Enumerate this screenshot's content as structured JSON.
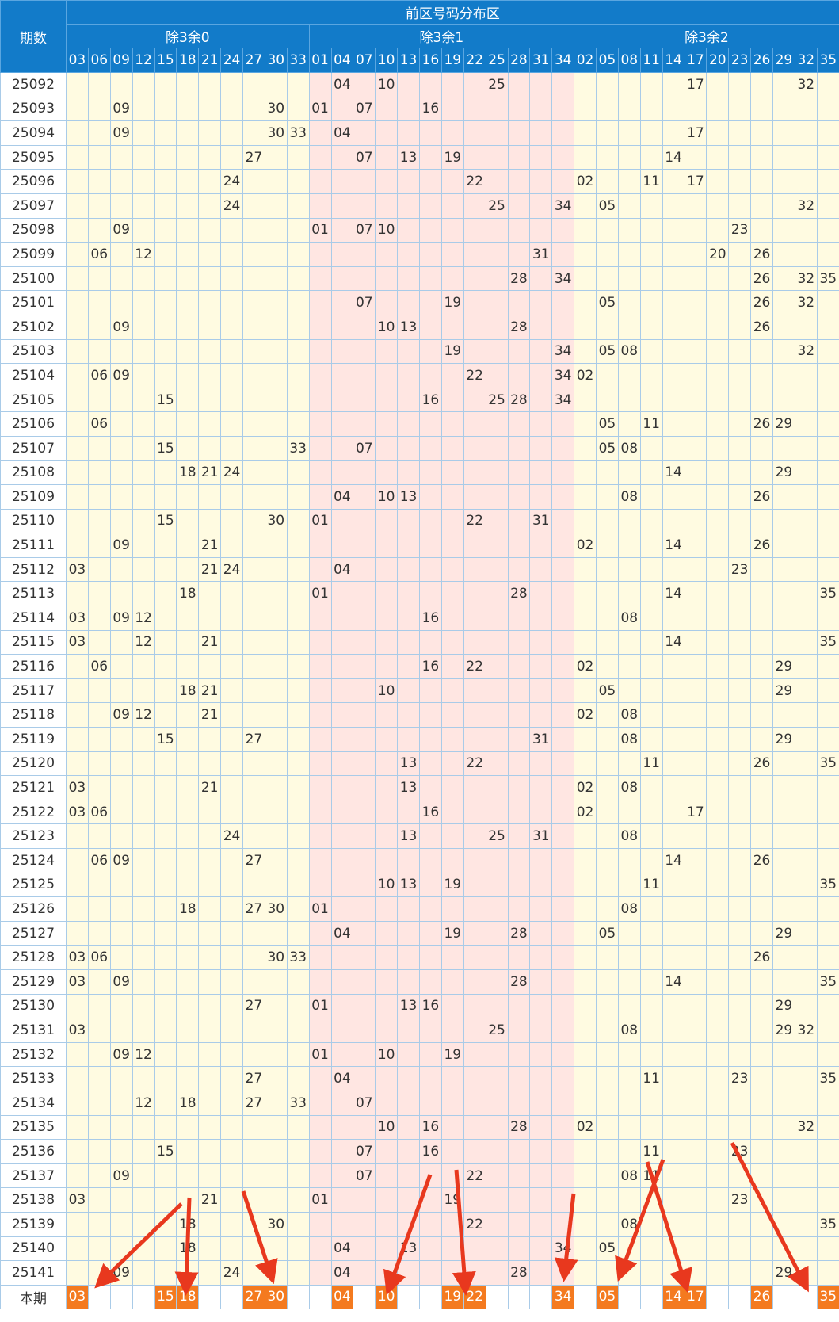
{
  "header": {
    "title": "前区号码分布区",
    "period_label": "期数",
    "groups": [
      {
        "label": "除3余0",
        "columns": [
          "03",
          "06",
          "09",
          "12",
          "15",
          "18",
          "21",
          "24",
          "27",
          "30",
          "33"
        ]
      },
      {
        "label": "除3余1",
        "columns": [
          "01",
          "04",
          "07",
          "10",
          "13",
          "16",
          "19",
          "22",
          "25",
          "28",
          "31",
          "34"
        ]
      },
      {
        "label": "除3余2",
        "columns": [
          "02",
          "05",
          "08",
          "11",
          "14",
          "17",
          "20",
          "23",
          "26",
          "29",
          "32",
          "35"
        ]
      }
    ]
  },
  "rows": [
    {
      "period": "25092",
      "numbers": [
        "04",
        "10",
        "25",
        "17",
        "32"
      ]
    },
    {
      "period": "25093",
      "numbers": [
        "09",
        "30",
        "01",
        "07",
        "16"
      ]
    },
    {
      "period": "25094",
      "numbers": [
        "09",
        "30",
        "33",
        "04",
        "17"
      ]
    },
    {
      "period": "25095",
      "numbers": [
        "27",
        "07",
        "13",
        "19",
        "14"
      ]
    },
    {
      "period": "25096",
      "numbers": [
        "24",
        "22",
        "02",
        "11",
        "17"
      ]
    },
    {
      "period": "25097",
      "numbers": [
        "24",
        "25",
        "34",
        "05",
        "32"
      ]
    },
    {
      "period": "25098",
      "numbers": [
        "09",
        "01",
        "07",
        "10",
        "23"
      ]
    },
    {
      "period": "25099",
      "numbers": [
        "06",
        "12",
        "31",
        "20",
        "26"
      ]
    },
    {
      "period": "25100",
      "numbers": [
        "28",
        "34",
        "26",
        "32",
        "35"
      ]
    },
    {
      "period": "25101",
      "numbers": [
        "07",
        "19",
        "05",
        "26",
        "32"
      ]
    },
    {
      "period": "25102",
      "numbers": [
        "09",
        "10",
        "13",
        "28",
        "26"
      ]
    },
    {
      "period": "25103",
      "numbers": [
        "19",
        "34",
        "05",
        "08",
        "32"
      ]
    },
    {
      "period": "25104",
      "numbers": [
        "06",
        "09",
        "22",
        "34",
        "02"
      ]
    },
    {
      "period": "25105",
      "numbers": [
        "15",
        "16",
        "25",
        "28",
        "34"
      ]
    },
    {
      "period": "25106",
      "numbers": [
        "06",
        "05",
        "11",
        "26",
        "29"
      ]
    },
    {
      "period": "25107",
      "numbers": [
        "15",
        "33",
        "07",
        "05",
        "08"
      ]
    },
    {
      "period": "25108",
      "numbers": [
        "18",
        "21",
        "24",
        "14",
        "29"
      ]
    },
    {
      "period": "25109",
      "numbers": [
        "04",
        "10",
        "13",
        "08",
        "26"
      ]
    },
    {
      "period": "25110",
      "numbers": [
        "15",
        "30",
        "01",
        "22",
        "31"
      ]
    },
    {
      "period": "25111",
      "numbers": [
        "09",
        "21",
        "02",
        "14",
        "26"
      ]
    },
    {
      "period": "25112",
      "numbers": [
        "03",
        "21",
        "24",
        "04",
        "23"
      ]
    },
    {
      "period": "25113",
      "numbers": [
        "18",
        "01",
        "28",
        "14",
        "35"
      ]
    },
    {
      "period": "25114",
      "numbers": [
        "03",
        "09",
        "12",
        "16",
        "08"
      ]
    },
    {
      "period": "25115",
      "numbers": [
        "03",
        "12",
        "21",
        "14",
        "35"
      ]
    },
    {
      "period": "25116",
      "numbers": [
        "06",
        "16",
        "22",
        "02",
        "29"
      ]
    },
    {
      "period": "25117",
      "numbers": [
        "18",
        "21",
        "10",
        "05",
        "29"
      ]
    },
    {
      "period": "25118",
      "numbers": [
        "09",
        "12",
        "21",
        "02",
        "08"
      ]
    },
    {
      "period": "25119",
      "numbers": [
        "15",
        "27",
        "31",
        "08",
        "29"
      ]
    },
    {
      "period": "25120",
      "numbers": [
        "13",
        "22",
        "11",
        "26",
        "35"
      ]
    },
    {
      "period": "25121",
      "numbers": [
        "03",
        "21",
        "13",
        "02",
        "08"
      ]
    },
    {
      "period": "25122",
      "numbers": [
        "03",
        "06",
        "16",
        "02",
        "17"
      ]
    },
    {
      "period": "25123",
      "numbers": [
        "24",
        "13",
        "25",
        "31",
        "08"
      ]
    },
    {
      "period": "25124",
      "numbers": [
        "06",
        "09",
        "27",
        "14",
        "26"
      ]
    },
    {
      "period": "25125",
      "numbers": [
        "10",
        "13",
        "19",
        "11",
        "35"
      ]
    },
    {
      "period": "25126",
      "numbers": [
        "18",
        "27",
        "30",
        "01",
        "08"
      ]
    },
    {
      "period": "25127",
      "numbers": [
        "04",
        "19",
        "28",
        "05",
        "29"
      ]
    },
    {
      "period": "25128",
      "numbers": [
        "03",
        "06",
        "30",
        "33",
        "26"
      ]
    },
    {
      "period": "25129",
      "numbers": [
        "03",
        "09",
        "28",
        "14",
        "35"
      ]
    },
    {
      "period": "25130",
      "numbers": [
        "27",
        "01",
        "13",
        "16",
        "29"
      ]
    },
    {
      "period": "25131",
      "numbers": [
        "03",
        "25",
        "08",
        "29",
        "32"
      ]
    },
    {
      "period": "25132",
      "numbers": [
        "09",
        "12",
        "01",
        "10",
        "19"
      ]
    },
    {
      "period": "25133",
      "numbers": [
        "27",
        "04",
        "11",
        "23",
        "35"
      ]
    },
    {
      "period": "25134",
      "numbers": [
        "12",
        "18",
        "27",
        "33",
        "07"
      ]
    },
    {
      "period": "25135",
      "numbers": [
        "10",
        "16",
        "28",
        "02",
        "32"
      ]
    },
    {
      "period": "25136",
      "numbers": [
        "15",
        "07",
        "16",
        "11",
        "23"
      ]
    },
    {
      "period": "25137",
      "numbers": [
        "09",
        "07",
        "22",
        "08",
        "11"
      ]
    },
    {
      "period": "25138",
      "numbers": [
        "03",
        "21",
        "01",
        "19",
        "23"
      ]
    },
    {
      "period": "25139",
      "numbers": [
        "18",
        "30",
        "22",
        "08",
        "35"
      ]
    },
    {
      "period": "25140",
      "numbers": [
        "18",
        "04",
        "13",
        "34",
        "05"
      ]
    },
    {
      "period": "25141",
      "numbers": [
        "09",
        "24",
        "04",
        "28",
        "29"
      ]
    }
  ],
  "current": {
    "label": "本期",
    "numbers": [
      "03",
      "15",
      "18",
      "27",
      "30",
      "04",
      "10",
      "19",
      "22",
      "34",
      "05",
      "14",
      "17",
      "26",
      "35"
    ]
  }
}
